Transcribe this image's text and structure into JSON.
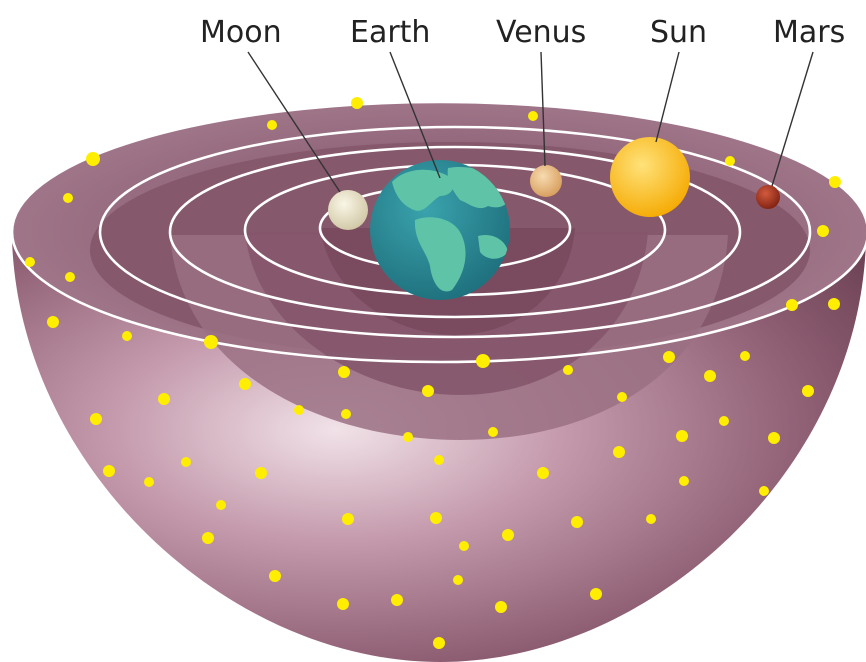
{
  "labels": {
    "moon": "Moon",
    "earth": "Earth",
    "venus": "Venus",
    "sun": "Sun",
    "mars": "Mars"
  },
  "colors": {
    "bowl_outer": "#8f6276",
    "bowl_inner": "#b48a9c",
    "bowl_highlight": "#e8d3dc",
    "orbit_line": "#ffffff",
    "star": "#ffee00",
    "moon": "#ede6cc",
    "earth_ocean": "#2d8f9a",
    "earth_land": "#5ec2a6",
    "venus": "#e9bf86",
    "sun": "#fcc31d",
    "mars": "#a4321f",
    "label_text": "#222222"
  },
  "icons": {
    "stars": "star-icon"
  }
}
